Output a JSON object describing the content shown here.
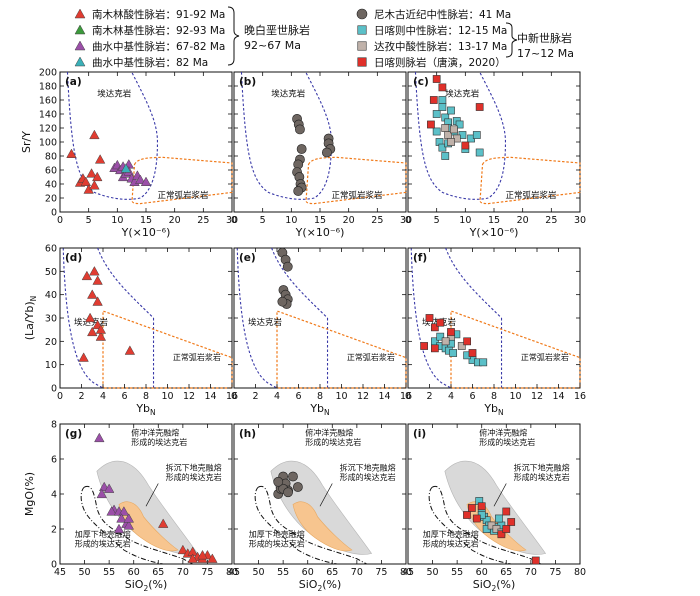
{
  "legend": {
    "left_groups": [
      {
        "name": "南木林酸性脉岩：91-92 Ma",
        "color": "#e03c31",
        "shape": "triangle"
      },
      {
        "name": "南木林基性脉岩：92-93 Ma",
        "color": "#3c9a3c",
        "shape": "triangle"
      },
      {
        "name": "曲水中基性脉岩：67-82 Ma",
        "color": "#9b4fa8",
        "shape": "triangle"
      },
      {
        "name": "曲水中基性脉岩：82 Ma",
        "color": "#3ab0b8",
        "shape": "triangle"
      }
    ],
    "left_bracket_label": [
      "晚白垩世脉岩",
      "92~67 Ma"
    ],
    "right_groups": [
      {
        "name": "尼木古近纪中性脉岩：41 Ma",
        "color": "#6e6661",
        "shape": "circle"
      },
      {
        "name": "日喀则中性脉岩：12-15 Ma",
        "color": "#5bc0c8",
        "shape": "square"
      },
      {
        "name": "达孜中酸性脉岩：13-17 Ma",
        "color": "#c0b2aa",
        "shape": "square"
      },
      {
        "name": "日喀则脉岩（唐演，2020）",
        "color": "#e0302a",
        "shape": "square"
      }
    ],
    "right_bracket_label": [
      "中新世脉岩",
      "17~12 Ma"
    ]
  },
  "field_labels": {
    "adakite": "埃达克岩",
    "normal_arc": "正常弧岩浆岩",
    "subducted_crust": [
      "俯冲洋壳融熔",
      "形成的埃达克岩"
    ],
    "delaminated_crust": [
      "拆沉下地壳融熔",
      "形成的埃达克岩"
    ],
    "thickened_crust": [
      "加厚下地壳融熔",
      "形成的埃达克岩"
    ]
  },
  "chart_data": [
    {
      "type": "scatter",
      "row": "Sr/Y vs Y",
      "ylabel": "Sr/Y",
      "xlabel": "Y(×10⁻⁶)",
      "xlim": [
        0,
        30
      ],
      "ylim": [
        0,
        200
      ],
      "xticks": [
        0,
        5,
        10,
        15,
        20,
        25,
        30
      ],
      "yticks": [
        0,
        20,
        40,
        60,
        80,
        100,
        120,
        140,
        160,
        180,
        200
      ],
      "panels": [
        {
          "label": "(a)",
          "series": [
            {
              "name": "南木林酸性脉岩",
              "points": [
                [
                  2,
                  83
                ],
                [
                  3.5,
                  42
                ],
                [
                  4,
                  48
                ],
                [
                  4.5,
                  43
                ],
                [
                  5,
                  32
                ],
                [
                  5.5,
                  55
                ],
                [
                  6,
                  110
                ],
                [
                  6,
                  38
                ],
                [
                  6.5,
                  50
                ],
                [
                  7,
                  75
                ]
              ]
            },
            {
              "name": "南木林基性脉岩",
              "points": []
            },
            {
              "name": "曲水中基性脉岩67-82",
              "points": [
                [
                  9.5,
                  63
                ],
                [
                  10,
                  67
                ],
                [
                  10.5,
                  60
                ],
                [
                  11,
                  65
                ],
                [
                  11,
                  50
                ],
                [
                  11.5,
                  55
                ],
                [
                  12,
                  68
                ],
                [
                  12,
                  58
                ],
                [
                  12.5,
                  48
                ],
                [
                  13,
                  43
                ],
                [
                  13.5,
                  52
                ],
                [
                  14,
                  46
                ],
                [
                  15,
                  43
                ]
              ]
            },
            {
              "name": "曲水中基性脉岩82",
              "points": [
                [
                  11.5,
                  62
                ]
              ]
            }
          ]
        },
        {
          "label": "(b)",
          "series": [
            {
              "name": "尼木古近纪中性脉岩",
              "points": [
                [
                  11,
                  133
                ],
                [
                  11.3,
                  125
                ],
                [
                  11.5,
                  118
                ],
                [
                  11.8,
                  90
                ],
                [
                  11.5,
                  75
                ],
                [
                  11.2,
                  68
                ],
                [
                  11,
                  57
                ],
                [
                  11.4,
                  50
                ],
                [
                  11.6,
                  40
                ],
                [
                  11.8,
                  35
                ],
                [
                  11.2,
                  30
                ],
                [
                  16.5,
                  105
                ],
                [
                  16.5,
                  98
                ],
                [
                  16.8,
                  90
                ],
                [
                  16.2,
                  85
                ]
              ]
            }
          ]
        },
        {
          "label": "(c)",
          "series": [
            {
              "name": "日喀则中性脉岩",
              "points": [
                [
                  5,
                  140
                ],
                [
                  6,
                  150
                ],
                [
                  6.5,
                  135
                ],
                [
                  7,
                  128
                ],
                [
                  7,
                  120
                ],
                [
                  8,
                  115
                ],
                [
                  8.5,
                  130
                ],
                [
                  9,
                  125
                ],
                [
                  9.5,
                  110
                ],
                [
                  10,
                  90
                ],
                [
                  11,
                  105
                ],
                [
                  12,
                  110
                ],
                [
                  5.5,
                  100
                ],
                [
                  6,
                  92
                ],
                [
                  7,
                  98
                ],
                [
                  6.5,
                  80
                ],
                [
                  12.5,
                  85
                ],
                [
                  5,
                  115
                ],
                [
                  7.5,
                  145
                ],
                [
                  6,
                  160
                ]
              ]
            },
            {
              "name": "达孜中酸性脉岩",
              "points": [
                [
                  7,
                  110
                ],
                [
                  8,
                  118
                ],
                [
                  8.5,
                  105
                ],
                [
                  7.5,
                  100
                ],
                [
                  6.5,
                  120
                ]
              ]
            },
            {
              "name": "日喀则脉岩（唐演，2020）",
              "points": [
                [
                  5,
                  190
                ],
                [
                  6,
                  178
                ],
                [
                  12.5,
                  150
                ],
                [
                  4.5,
                  160
                ],
                [
                  10,
                  95
                ],
                [
                  4,
                  125
                ]
              ]
            }
          ]
        }
      ]
    },
    {
      "type": "scatter",
      "row": "(La/Yb)N vs YbN",
      "ylabel": "(La/Yb)N",
      "xlabel": "YbN",
      "xlim": [
        0,
        16
      ],
      "ylim": [
        0,
        60
      ],
      "xticks": [
        0,
        2,
        4,
        6,
        8,
        10,
        12,
        14,
        16
      ],
      "yticks": [
        0,
        10,
        20,
        30,
        40,
        50,
        60
      ],
      "panels": [
        {
          "label": "(d)",
          "series": [
            {
              "name": "南木林酸性脉岩",
              "points": [
                [
                  2.5,
                  48
                ],
                [
                  3.2,
                  50
                ],
                [
                  3.5,
                  46
                ],
                [
                  3.0,
                  40
                ],
                [
                  3.5,
                  37
                ],
                [
                  2.8,
                  30
                ],
                [
                  3.5,
                  27
                ],
                [
                  3.0,
                  24
                ],
                [
                  3.8,
                  22
                ],
                [
                  2.2,
                  13
                ],
                [
                  6.5,
                  16
                ],
                [
                  3.8,
                  25
                ]
              ]
            }
          ]
        },
        {
          "label": "(e)",
          "series": [
            {
              "name": "尼木古近纪中性脉岩",
              "points": [
                [
                  4.5,
                  58
                ],
                [
                  4.8,
                  55
                ],
                [
                  5.0,
                  52
                ],
                [
                  4.6,
                  42
                ],
                [
                  4.8,
                  40
                ],
                [
                  5.0,
                  38
                ],
                [
                  4.9,
                  36
                ],
                [
                  4.5,
                  37
                ]
              ]
            }
          ]
        },
        {
          "label": "(f)",
          "series": [
            {
              "name": "日喀则中性脉岩",
              "points": [
                [
                  2.5,
                  20
                ],
                [
                  3,
                  18
                ],
                [
                  3.5,
                  17
                ],
                [
                  3,
                  22
                ],
                [
                  4,
                  19
                ],
                [
                  4.5,
                  23
                ],
                [
                  6,
                  12
                ],
                [
                  6.5,
                  11
                ],
                [
                  7,
                  11
                ],
                [
                  5.5,
                  14
                ],
                [
                  3.8,
                  16
                ],
                [
                  4.2,
                  15
                ]
              ]
            },
            {
              "name": "达孜中酸性脉岩",
              "points": [
                [
                  4,
                  22
                ],
                [
                  3.5,
                  20
                ],
                [
                  5,
                  18
                ]
              ]
            },
            {
              "name": "日喀则脉岩（唐演，2020）",
              "points": [
                [
                  2,
                  30
                ],
                [
                  2.5,
                  26
                ],
                [
                  3,
                  28
                ],
                [
                  1.5,
                  18
                ],
                [
                  4,
                  24
                ],
                [
                  5.5,
                  20
                ],
                [
                  6,
                  15
                ],
                [
                  2.5,
                  17
                ]
              ]
            }
          ]
        }
      ]
    },
    {
      "type": "scatter",
      "row": "MgO vs SiO2",
      "ylabel": "MgO(%)",
      "xlabel": "SiO2(%)",
      "xlim": [
        45,
        80
      ],
      "ylim": [
        0,
        8
      ],
      "xticks": [
        45,
        50,
        55,
        60,
        65,
        70,
        75,
        80
      ],
      "yticks": [
        0,
        2,
        4,
        6,
        8
      ],
      "panels": [
        {
          "label": "(g)",
          "series": [
            {
              "name": "南木林酸性脉岩",
              "points": [
                [
                  66,
                  2.3
                ],
                [
                  70,
                  0.8
                ],
                [
                  71,
                  0.6
                ],
                [
                  72,
                  0.7
                ],
                [
                  73,
                  0.4
                ],
                [
                  74,
                  0.3
                ],
                [
                  75,
                  0.5
                ],
                [
                  76,
                  0.3
                ],
                [
                  74,
                  0.5
                ],
                [
                  72,
                  0.3
                ]
              ]
            },
            {
              "name": "曲水中基性脉岩67-82",
              "points": [
                [
                  53,
                  7.2
                ],
                [
                  54,
                  4.4
                ],
                [
                  55,
                  4.3
                ],
                [
                  53.5,
                  4.0
                ],
                [
                  56,
                  3.1
                ],
                [
                  55.5,
                  3.0
                ],
                [
                  57,
                  3.0
                ],
                [
                  58,
                  3.0
                ],
                [
                  57.5,
                  2.6
                ],
                [
                  58.5,
                  2.3
                ],
                [
                  59,
                  2.2
                ],
                [
                  57,
                  2.0
                ],
                [
                  59,
                  2.6
                ]
              ]
            }
          ]
        },
        {
          "label": "(h)",
          "series": [
            {
              "name": "尼木古近纪中性脉岩",
              "points": [
                [
                  54,
                  4.0
                ],
                [
                  54.5,
                  4.3
                ],
                [
                  55,
                  5.0
                ],
                [
                  55.5,
                  4.6
                ],
                [
                  56,
                  4.2
                ],
                [
                  57,
                  5.0
                ],
                [
                  55,
                  4.3
                ],
                [
                  54,
                  4.7
                ],
                [
                  56,
                  4.1
                ],
                [
                  58,
                  4.4
                ]
              ]
            }
          ]
        },
        {
          "label": "(i)",
          "series": [
            {
              "name": "日喀则中性脉岩",
              "points": [
                [
                  59.5,
                  3.6
                ],
                [
                  60,
                  3.1
                ],
                [
                  60.5,
                  2.7
                ],
                [
                  61,
                  2.5
                ],
                [
                  61.5,
                  2.2
                ],
                [
                  62,
                  2.0
                ],
                [
                  62.5,
                  1.9
                ],
                [
                  63,
                  2.1
                ],
                [
                  64,
                  2.2
                ],
                [
                  60,
                  2.8
                ],
                [
                  61,
                  2.0
                ],
                [
                  63.5,
                  2.6
                ]
              ]
            },
            {
              "name": "达孜中酸性脉岩",
              "points": [
                [
                  62,
                  2.2
                ],
                [
                  63,
                  2.0
                ],
                [
                  64,
                  1.8
                ]
              ]
            },
            {
              "name": "日喀则脉岩（唐演，2020）",
              "points": [
                [
                  57,
                  2.8
                ],
                [
                  58,
                  3.2
                ],
                [
                  59,
                  2.6
                ],
                [
                  65,
                  3.0
                ],
                [
                  66,
                  2.4
                ],
                [
                  64,
                  1.7
                ],
                [
                  65,
                  2.0
                ],
                [
                  71,
                  0.2
                ],
                [
                  60,
                  3.3
                ]
              ]
            }
          ]
        }
      ]
    }
  ]
}
